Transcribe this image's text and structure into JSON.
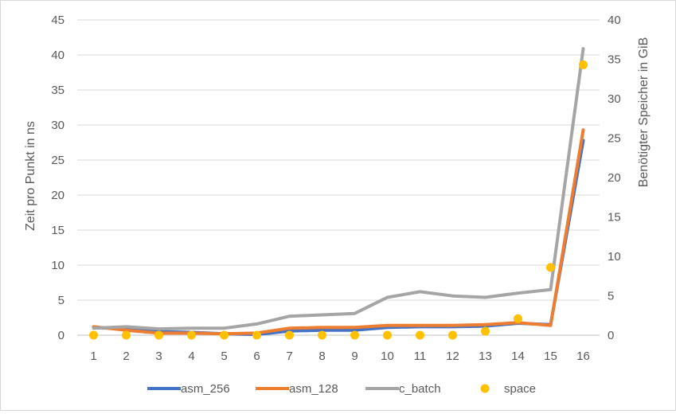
{
  "chart_data": {
    "type": "line",
    "title": "",
    "xlabel": "",
    "ylabel": "Zeit pro Punkt in ns",
    "y2label": "Benötigter Speicher in GiB",
    "categories": [
      "1",
      "2",
      "3",
      "4",
      "5",
      "6",
      "7",
      "8",
      "9",
      "10",
      "11",
      "12",
      "13",
      "14",
      "15",
      "16"
    ],
    "ylim": [
      0,
      45
    ],
    "yticks": [
      0,
      5,
      10,
      15,
      20,
      25,
      30,
      35,
      40,
      45
    ],
    "y2lim": [
      0,
      40
    ],
    "y2ticks": [
      0,
      5,
      10,
      15,
      20,
      25,
      30,
      35,
      40
    ],
    "grid": true,
    "legend_position": "bottom",
    "series": [
      {
        "name": "asm_256",
        "axis": "left",
        "kind": "line",
        "color": "#4472c4",
        "values": [
          1.1,
          0.9,
          0.5,
          0.4,
          0.2,
          0.1,
          0.6,
          0.7,
          0.7,
          1.1,
          1.2,
          1.2,
          1.3,
          1.7,
          1.5,
          27.8
        ]
      },
      {
        "name": "asm_128",
        "axis": "left",
        "kind": "line",
        "color": "#ed7d31",
        "values": [
          1.2,
          0.7,
          0.3,
          0.3,
          0.2,
          0.3,
          1.0,
          1.1,
          1.1,
          1.4,
          1.4,
          1.4,
          1.5,
          1.8,
          1.4,
          29.3
        ]
      },
      {
        "name": "c_batch",
        "axis": "left",
        "kind": "line",
        "color": "#a5a5a5",
        "values": [
          1.0,
          1.2,
          0.9,
          1.0,
          1.0,
          1.6,
          2.7,
          2.9,
          3.1,
          5.4,
          6.2,
          5.6,
          5.4,
          6.0,
          6.5,
          40.9
        ]
      },
      {
        "name": "space",
        "axis": "right",
        "kind": "scatter",
        "color": "#ffc000",
        "values": [
          0.0,
          0.0,
          0.0,
          0.0,
          0.0,
          0.0,
          0.0,
          0.0,
          0.0,
          0.0,
          0.0,
          0.0,
          0.5,
          2.1,
          8.6,
          34.3
        ]
      }
    ]
  }
}
